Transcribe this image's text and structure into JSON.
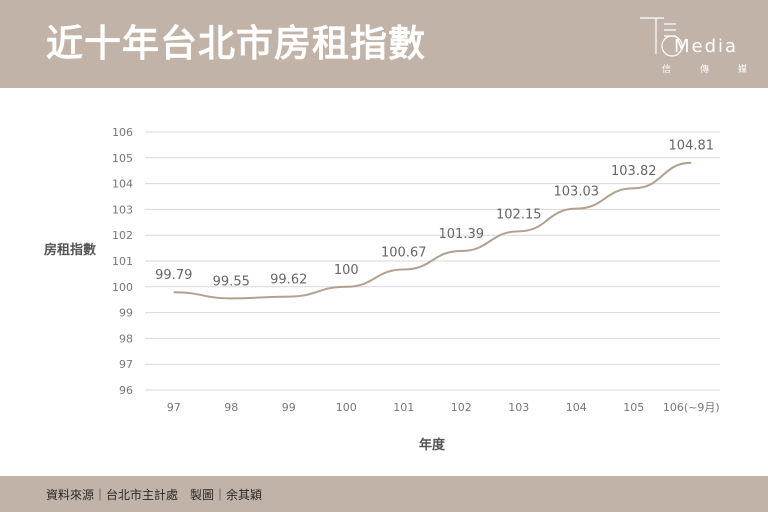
{
  "header": {
    "title": "近十年台北市房租指數",
    "logo_text": "Media",
    "logo_sub": [
      "信",
      "傳",
      "媒"
    ]
  },
  "footer": {
    "source": "資料來源｜台北市主計處　製圖｜余其穎"
  },
  "colors": {
    "band": "#c2b3a8",
    "line": "#b3a08f",
    "grid": "#d9d9d9"
  },
  "chart_data": {
    "type": "line",
    "ylabel": "房租指數",
    "xlabel": "年度",
    "categories": [
      "97",
      "98",
      "99",
      "100",
      "101",
      "102",
      "103",
      "104",
      "105",
      "106(~9月)"
    ],
    "values": [
      99.79,
      99.55,
      99.62,
      100,
      100.67,
      101.39,
      102.15,
      103.03,
      103.82,
      104.81
    ],
    "data_labels": [
      "99.79",
      "99.55",
      "99.62",
      "100",
      "100.67",
      "101.39",
      "102.15",
      "103.03",
      "103.82",
      "104.81"
    ],
    "ylim": [
      96,
      106
    ],
    "yticks": [
      "96",
      "97",
      "98",
      "99",
      "100",
      "101",
      "102",
      "103",
      "104",
      "105",
      "106"
    ],
    "grid": true,
    "legend": "none"
  }
}
